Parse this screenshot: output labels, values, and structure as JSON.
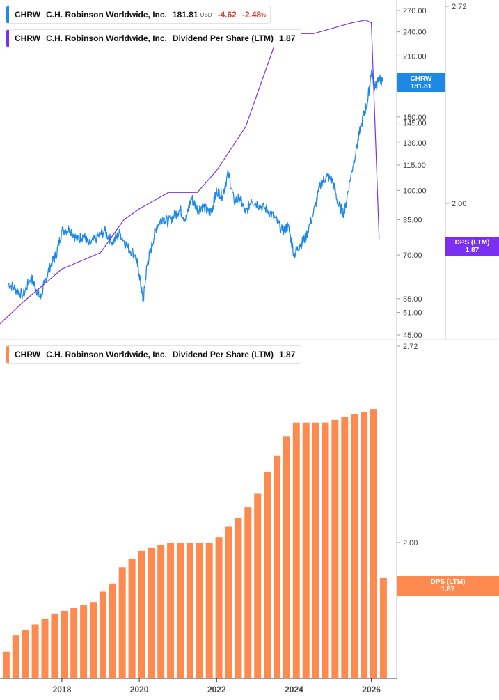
{
  "colors": {
    "price": "#1e88e5",
    "dps_line": "#7b2ff0",
    "bars": "#ff8a50",
    "axis_text": "#444444",
    "grid": "#e6e6e6"
  },
  "legend_price": {
    "ticker": "CHRW",
    "name": "C.H. Robinson Worldwide, Inc.",
    "price": "181.81",
    "unit": "USD",
    "change": "-4.62",
    "change_pct": "-2.48",
    "pct_sign": "%"
  },
  "legend_dps_top": {
    "ticker": "CHRW",
    "name": "C.H. Robinson Worldwide, Inc.",
    "metric": "Dividend Per Share (LTM)",
    "value": "1.87"
  },
  "legend_dps_bottom": {
    "ticker": "CHRW",
    "name": "C.H. Robinson Worldwide, Inc.",
    "metric": "Dividend Per Share (LTM)",
    "value": "1.87"
  },
  "tags": {
    "price_tag": {
      "line1": "CHRW",
      "line2": "181.81"
    },
    "dps_top_tag": {
      "line1": "DPS (LTM)",
      "line2": "1.87"
    },
    "dps_bottom_tag": {
      "line1": "DPS (LTM)",
      "line2": "1.87"
    }
  },
  "chart_data": [
    {
      "type": "line",
      "title": "",
      "scale": "log",
      "y_ticks": [
        "270.00",
        "240.00",
        "210.00",
        "150.00",
        "145.00",
        "130.00",
        "115.00",
        "100.00",
        "85.00",
        "70.00",
        "55.00",
        "51.00",
        "45.00"
      ],
      "y_tick_values": [
        270,
        240,
        210,
        150,
        145,
        130,
        115,
        100,
        85,
        70,
        55,
        51,
        45
      ],
      "ylim": [
        45,
        290
      ],
      "right_axis": {
        "ticks": [
          "2.72",
          "2.00"
        ],
        "tick_values": [
          2.72,
          2.0
        ]
      },
      "series": [
        {
          "name": "CHRW",
          "axis": "left",
          "x": [
            2016.6,
            2016.8,
            2017.0,
            2017.2,
            2017.3,
            2017.45,
            2017.55,
            2017.7,
            2017.85,
            2018.0,
            2018.2,
            2018.4,
            2018.55,
            2018.7,
            2018.9,
            2019.1,
            2019.3,
            2019.5,
            2019.7,
            2019.9,
            2020.0,
            2020.1,
            2020.2,
            2020.3,
            2020.45,
            2020.6,
            2020.75,
            2020.9,
            2021.05,
            2021.2,
            2021.35,
            2021.5,
            2021.65,
            2021.8,
            2021.9,
            2022.0,
            2022.15,
            2022.3,
            2022.45,
            2022.6,
            2022.75,
            2022.9,
            2023.1,
            2023.3,
            2023.5,
            2023.7,
            2023.85,
            2024.0,
            2024.15,
            2024.3,
            2024.5,
            2024.7,
            2024.85,
            2025.0,
            2025.15,
            2025.3,
            2025.45,
            2025.6,
            2025.75,
            2025.9,
            2026.0,
            2026.1,
            2026.2,
            2026.3
          ],
          "values": [
            60,
            58,
            56,
            62,
            59,
            55,
            60,
            66,
            70,
            80,
            81,
            76,
            78,
            74,
            77,
            80,
            75,
            79,
            73,
            70,
            63,
            54,
            66,
            72,
            82,
            86,
            84,
            87,
            90,
            85,
            96,
            90,
            92,
            88,
            91,
            100,
            97,
            110,
            94,
            96,
            88,
            95,
            92,
            90,
            86,
            80,
            82,
            70,
            74,
            77,
            88,
            104,
            108,
            105,
            92,
            88,
            106,
            124,
            145,
            163,
            193,
            176,
            186,
            181.81
          ]
        },
        {
          "name": "DPS (LTM)",
          "axis": "right",
          "x": [
            2016.4,
            2017.0,
            2017.5,
            2018.0,
            2018.5,
            2019.0,
            2019.6,
            2020.0,
            2020.75,
            2021.5,
            2022.0,
            2022.75,
            2023.5,
            2024.0,
            2024.5,
            2025.0,
            2025.5,
            2025.85,
            2026.0,
            2026.2
          ],
          "values": [
            1.56,
            1.64,
            1.7,
            1.76,
            1.79,
            1.82,
            1.94,
            1.98,
            2.04,
            2.04,
            2.12,
            2.28,
            2.58,
            2.62,
            2.62,
            2.64,
            2.66,
            2.67,
            2.66,
            1.87
          ]
        }
      ]
    },
    {
      "type": "bar",
      "title": "",
      "series_name": "DPS (LTM)",
      "ylim": [
        1.57,
        2.72
      ],
      "y_ticks": [
        "2.72",
        "2.00"
      ],
      "y_tick_values": [
        2.72,
        2.0
      ],
      "x_ticks": [
        "2018",
        "2020",
        "2022",
        "2024",
        "2026"
      ],
      "x_tick_values": [
        2018,
        2020,
        2022,
        2024,
        2026
      ],
      "xlim": [
        2016.4,
        2026.6
      ],
      "x": [
        2016.56,
        2016.81,
        2017.06,
        2017.31,
        2017.56,
        2017.81,
        2018.06,
        2018.31,
        2018.56,
        2018.81,
        2019.06,
        2019.31,
        2019.56,
        2019.81,
        2020.06,
        2020.31,
        2020.56,
        2020.81,
        2021.06,
        2021.31,
        2021.56,
        2021.81,
        2022.06,
        2022.31,
        2022.56,
        2022.81,
        2023.06,
        2023.31,
        2023.56,
        2023.81,
        2024.06,
        2024.31,
        2024.56,
        2024.81,
        2025.06,
        2025.31,
        2025.56,
        2025.81,
        2026.06,
        2026.31
      ],
      "values": [
        1.6,
        1.66,
        1.68,
        1.7,
        1.72,
        1.74,
        1.75,
        1.76,
        1.77,
        1.78,
        1.82,
        1.85,
        1.91,
        1.94,
        1.97,
        1.98,
        1.99,
        2.0,
        2.0,
        2.0,
        2.0,
        2.0,
        2.02,
        2.06,
        2.09,
        2.13,
        2.18,
        2.26,
        2.32,
        2.39,
        2.44,
        2.44,
        2.44,
        2.44,
        2.45,
        2.46,
        2.47,
        2.48,
        2.49,
        1.87
      ]
    }
  ]
}
